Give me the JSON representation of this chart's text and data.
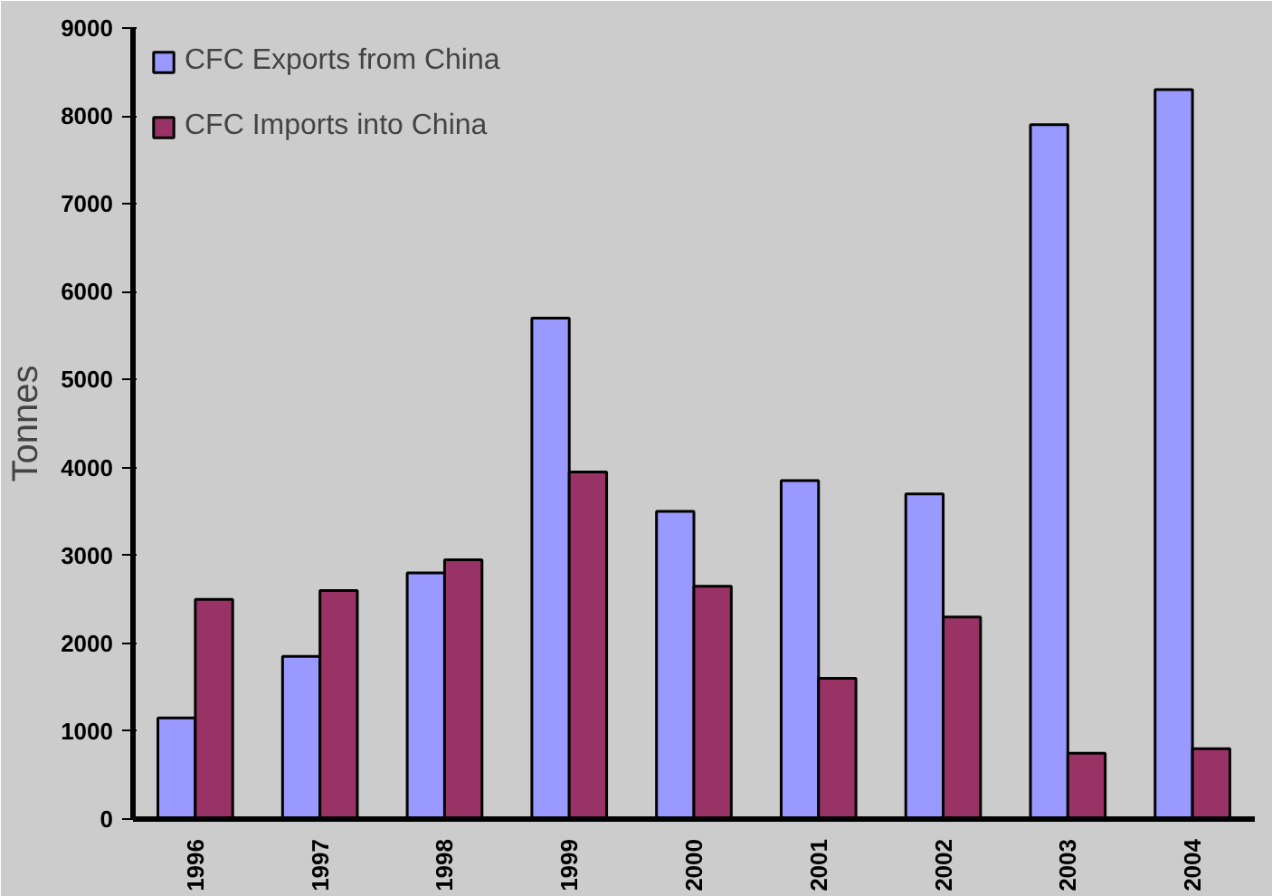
{
  "chart_data": {
    "type": "bar",
    "ylabel": "Tonnes",
    "categories": [
      "1996",
      "1997",
      "1998",
      "1999",
      "2000",
      "2001",
      "2002",
      "2003",
      "2004"
    ],
    "series": [
      {
        "name": "CFC Exports from China",
        "color": "#9999ff",
        "values": [
          1150,
          1850,
          2800,
          5700,
          3500,
          3850,
          3700,
          7900,
          8300
        ]
      },
      {
        "name": "CFC Imports into China",
        "color": "#993366",
        "values": [
          2500,
          2600,
          2950,
          3950,
          2650,
          1600,
          2300,
          750,
          800
        ]
      }
    ],
    "ylim": [
      0,
      9000
    ],
    "yticks": [
      0,
      1000,
      2000,
      3000,
      4000,
      5000,
      6000,
      7000,
      8000,
      9000
    ],
    "grid": false,
    "legend": "top left"
  }
}
